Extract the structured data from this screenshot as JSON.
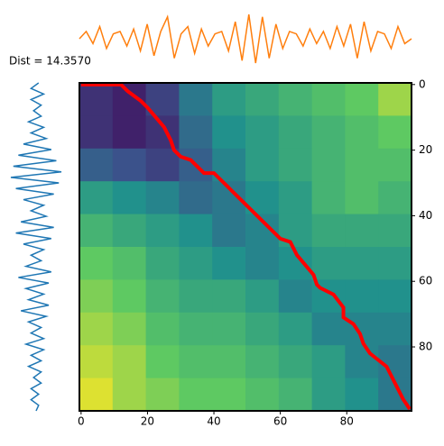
{
  "chart_data": {
    "type": "heatmap",
    "annotation": "Dist = 14.3570",
    "xlim": [
      -0.5,
      99.5
    ],
    "ylim": [
      99.5,
      -0.5
    ],
    "xticks": [
      0,
      20,
      40,
      60,
      80
    ],
    "yticks": [
      0,
      20,
      40,
      60,
      80
    ],
    "zlim": [
      0,
      1
    ],
    "z": [
      [
        0.15,
        0.1,
        0.2,
        0.4,
        0.55,
        0.6,
        0.65,
        0.7,
        0.75,
        0.85
      ],
      [
        0.15,
        0.1,
        0.15,
        0.35,
        0.5,
        0.55,
        0.6,
        0.65,
        0.7,
        0.75
      ],
      [
        0.3,
        0.25,
        0.2,
        0.3,
        0.45,
        0.55,
        0.6,
        0.65,
        0.7,
        0.7
      ],
      [
        0.55,
        0.5,
        0.45,
        0.35,
        0.4,
        0.5,
        0.55,
        0.65,
        0.7,
        0.65
      ],
      [
        0.65,
        0.6,
        0.55,
        0.5,
        0.4,
        0.45,
        0.55,
        0.6,
        0.6,
        0.6
      ],
      [
        0.75,
        0.7,
        0.6,
        0.55,
        0.5,
        0.45,
        0.5,
        0.55,
        0.55,
        0.55
      ],
      [
        0.8,
        0.75,
        0.65,
        0.6,
        0.6,
        0.55,
        0.45,
        0.5,
        0.5,
        0.5
      ],
      [
        0.85,
        0.8,
        0.7,
        0.65,
        0.65,
        0.6,
        0.55,
        0.45,
        0.45,
        0.45
      ],
      [
        0.9,
        0.85,
        0.75,
        0.7,
        0.7,
        0.65,
        0.6,
        0.55,
        0.45,
        0.4
      ],
      [
        0.95,
        0.85,
        0.8,
        0.75,
        0.75,
        0.7,
        0.65,
        0.55,
        0.5,
        0.4
      ]
    ],
    "path": {
      "color": "#ff0000",
      "x": [
        0,
        12,
        14,
        18,
        20,
        25,
        27,
        28,
        30,
        33,
        37,
        40,
        60,
        63,
        65,
        70,
        71,
        72,
        76,
        79,
        79,
        82,
        84,
        85,
        87,
        92,
        95,
        97,
        99
      ],
      "y": [
        0,
        0,
        2,
        5,
        7,
        13,
        17,
        20,
        22,
        23,
        27,
        27,
        47,
        48,
        52,
        58,
        61,
        62,
        64,
        68,
        71,
        73,
        76,
        79,
        82,
        86,
        92,
        96,
        99
      ]
    },
    "signal_top": {
      "color": "#ff7f0e",
      "values": [
        0,
        0.3,
        -0.2,
        0.5,
        -0.4,
        0.2,
        0.3,
        -0.3,
        0.4,
        -0.5,
        0.6,
        -0.7,
        0.3,
        0.9,
        -0.8,
        0.2,
        0.5,
        -0.6,
        0.4,
        -0.3,
        0.2,
        0.3,
        -0.5,
        0.7,
        -0.9,
        1.0,
        -1.0,
        0.9,
        -0.8,
        0.6,
        -0.4,
        0.3,
        0.2,
        -0.3,
        0.4,
        -0.2,
        0.3,
        -0.4,
        0.5,
        -0.3,
        0.6,
        -0.8,
        0.7,
        -0.5,
        0.3,
        0.2,
        -0.4,
        0.5,
        -0.2,
        0
      ]
    },
    "signal_left": {
      "color": "#1f77b4",
      "values": [
        0.1,
        -0.2,
        0.3,
        -0.2,
        0.2,
        -0.1,
        0.2,
        -0.3,
        0.3,
        -0.2,
        0.4,
        -0.5,
        0.6,
        -0.7,
        0.8,
        -0.9,
        1.0,
        -1.0,
        0.9,
        -0.8,
        0.7,
        -0.5,
        0.3,
        -0.2,
        0.4,
        -0.6,
        0.7,
        -0.8,
        0.6,
        -0.5,
        0.3,
        -0.2,
        0.2,
        -0.4,
        0.6,
        -0.7,
        0.5,
        -0.4,
        0.3,
        -0.3,
        0.5,
        -0.6,
        0.4,
        -0.3,
        0.2,
        -0.2,
        0.3,
        -0.4,
        0.3,
        -0.2,
        0.2,
        -0.3,
        0.2,
        -0.1,
        0.2,
        -0.2,
        0.1,
        -0.2,
        0.1,
        0
      ]
    }
  }
}
